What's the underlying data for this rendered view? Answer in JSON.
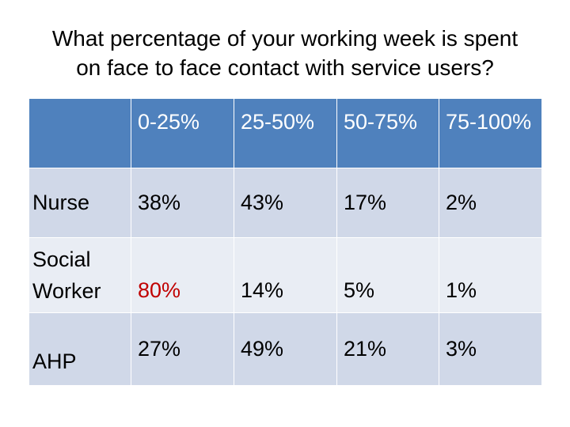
{
  "title_line1": "What percentage of your working week is spent",
  "title_line2": "on face to face contact with service users?",
  "chart_data": {
    "type": "table",
    "columns": [
      "",
      "0-25%",
      "25-50%",
      "50-75%",
      "75-100%"
    ],
    "rows": [
      {
        "label_lines": [
          "Nurse"
        ],
        "values": [
          "38%",
          "43%",
          "17%",
          "2%"
        ],
        "bold": [
          false,
          true,
          false,
          false
        ],
        "highlight": [
          false,
          false,
          false,
          false
        ]
      },
      {
        "label_lines": [
          "Social",
          "Worker"
        ],
        "values": [
          "80%",
          "14%",
          "5%",
          "1%"
        ],
        "bold": [
          true,
          false,
          false,
          false
        ],
        "highlight": [
          true,
          false,
          false,
          false
        ]
      },
      {
        "label_lines": [
          "AHP"
        ],
        "values": [
          "27%",
          "49%",
          "21%",
          "3%"
        ],
        "bold": [
          false,
          true,
          false,
          false
        ],
        "highlight": [
          false,
          false,
          false,
          false
        ]
      }
    ]
  },
  "colors": {
    "header_bg": "#4f81bd",
    "row_dark": "#d0d8e8",
    "row_light": "#e9edf4",
    "highlight_text": "#c00000"
  }
}
